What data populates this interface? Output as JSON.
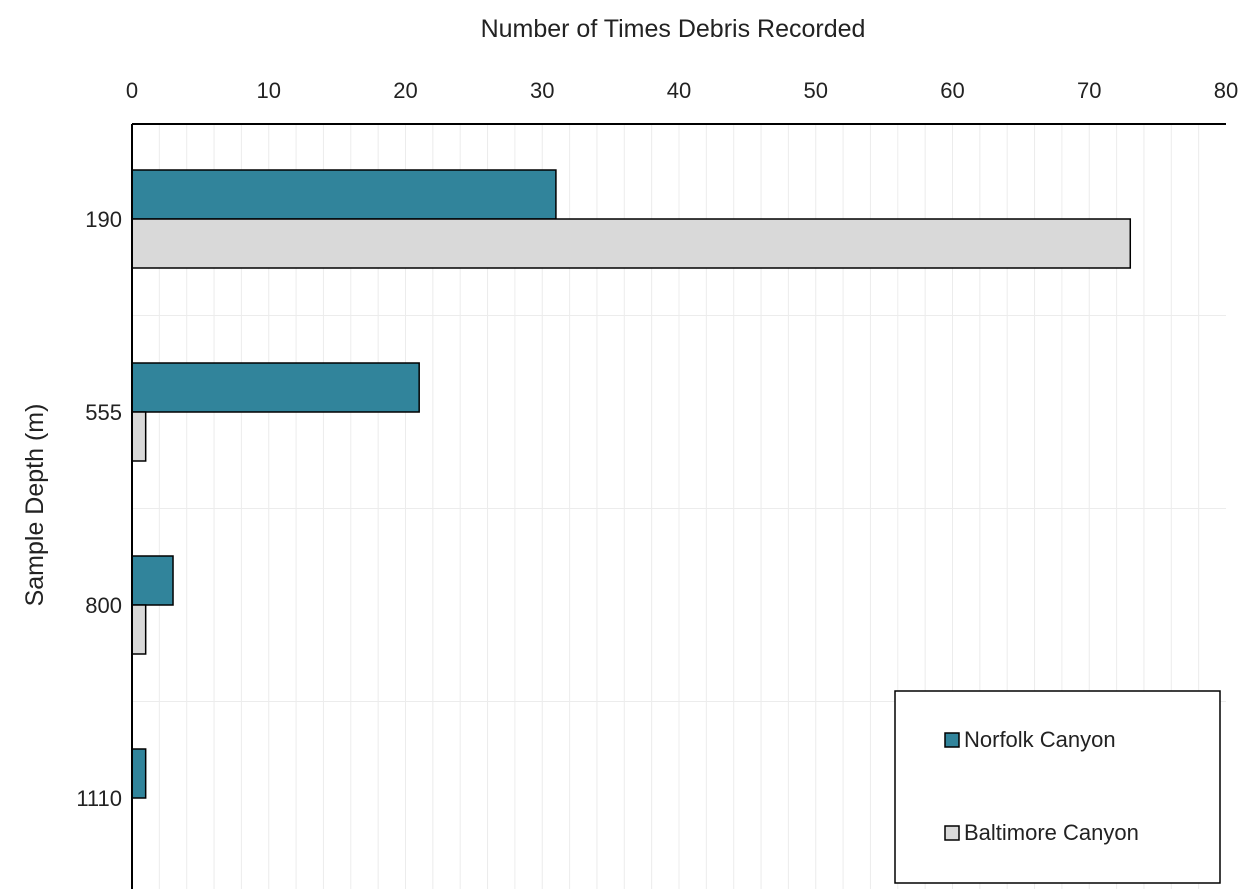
{
  "chart_data": {
    "type": "bar",
    "orientation": "horizontal",
    "xlabel": "Number of Times Debris Recorded",
    "ylabel": "Sample Depth (m)",
    "xlim": [
      0,
      80
    ],
    "x_ticks": [
      "0",
      "10",
      "20",
      "30",
      "40",
      "50",
      "60",
      "70",
      "80"
    ],
    "x_axis_position": "top",
    "grid": true,
    "categories": [
      "190",
      "555",
      "800",
      "1110"
    ],
    "series": [
      {
        "name": "Norfolk Canyon",
        "color": "#31849b",
        "values": [
          31,
          21,
          3,
          1
        ]
      },
      {
        "name": "Baltimore Canyon",
        "color": "#d9d9d9",
        "values": [
          73,
          1,
          1,
          0
        ]
      }
    ],
    "legend_position": "bottom-right"
  }
}
